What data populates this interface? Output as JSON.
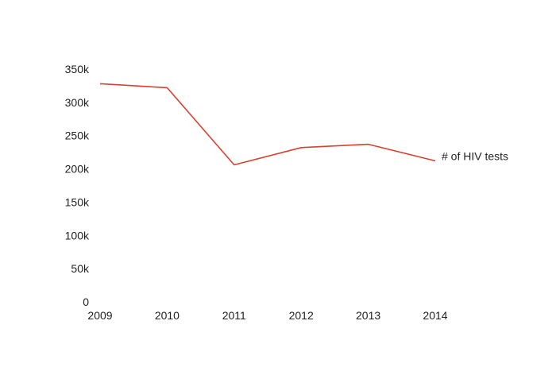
{
  "chart_data": {
    "type": "line",
    "categories": [
      "2009",
      "2010",
      "2011",
      "2012",
      "2013",
      "2014"
    ],
    "series": [
      {
        "name": "# of HIV tests",
        "color": "#d9402e",
        "values": [
          328000,
          322000,
          206000,
          232000,
          237000,
          212000
        ]
      }
    ],
    "ylim": [
      0,
      350000
    ],
    "yticks": [
      {
        "value": 0,
        "label": "0"
      },
      {
        "value": 50000,
        "label": "50k"
      },
      {
        "value": 100000,
        "label": "100k"
      },
      {
        "value": 150000,
        "label": "150k"
      },
      {
        "value": 200000,
        "label": "200k"
      },
      {
        "value": 250000,
        "label": "250k"
      },
      {
        "value": 300000,
        "label": "300k"
      },
      {
        "value": 350000,
        "label": "350k"
      }
    ],
    "grid": false,
    "legend": "inline-end-of-line"
  }
}
